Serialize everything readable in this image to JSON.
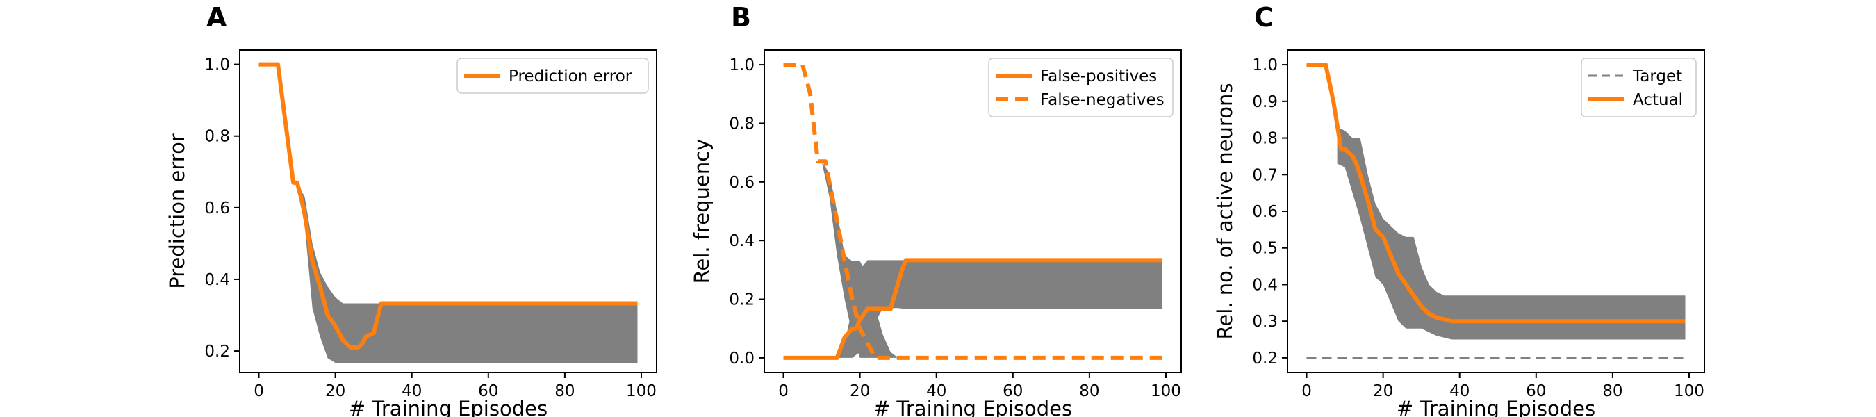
{
  "chart_data": [
    {
      "panel": "A",
      "type": "line",
      "xlabel": "# Training Episodes",
      "ylabel": "Prediction error",
      "xlim": [
        -5,
        104
      ],
      "ylim": [
        0.14,
        1.04
      ],
      "xticks": [
        0,
        20,
        40,
        60,
        80,
        100
      ],
      "yticks": [
        0.2,
        0.4,
        0.6,
        0.8,
        1.0
      ],
      "ytick_labels": [
        "0.2",
        "0.4",
        "0.6",
        "0.8",
        "1.0"
      ],
      "grid": false,
      "legend": "top-right",
      "band": {
        "color": "#808080",
        "x": [
          10,
          12,
          14,
          16,
          18,
          20,
          22,
          32,
          99
        ],
        "upper": [
          0.67,
          0.63,
          0.5,
          0.42,
          0.38,
          0.35,
          0.333,
          0.333,
          0.333
        ],
        "lower": [
          0.67,
          0.55,
          0.32,
          0.24,
          0.18,
          0.167,
          0.167,
          0.167,
          0.167
        ]
      },
      "series": [
        {
          "name": "Prediction error",
          "color": "#ff7f0e",
          "style": "solid",
          "x": [
            0,
            5,
            9,
            10,
            11,
            12,
            14,
            16,
            18,
            20,
            22,
            24,
            25,
            26,
            27,
            28,
            30,
            32,
            99
          ],
          "y": [
            1.0,
            1.0,
            0.67,
            0.67,
            0.63,
            0.58,
            0.45,
            0.38,
            0.3,
            0.27,
            0.23,
            0.21,
            0.21,
            0.21,
            0.22,
            0.24,
            0.25,
            0.333,
            0.333
          ]
        }
      ]
    },
    {
      "panel": "B",
      "type": "line",
      "xlabel": "# Training Episodes",
      "ylabel": "Rel. frequency",
      "xlim": [
        -5,
        104
      ],
      "ylim": [
        -0.05,
        1.05
      ],
      "xticks": [
        0,
        20,
        40,
        60,
        80,
        100
      ],
      "yticks": [
        0.0,
        0.2,
        0.4,
        0.6,
        0.8,
        1.0
      ],
      "ytick_labels": [
        "0.0",
        "0.2",
        "0.4",
        "0.6",
        "0.8",
        "1.0"
      ],
      "grid": false,
      "legend": "top-right",
      "bands": [
        {
          "color": "#808080",
          "x": [
            10,
            12,
            14,
            16,
            18,
            20,
            22,
            24,
            26,
            28,
            30,
            32
          ],
          "upper": [
            0.67,
            0.63,
            0.5,
            0.35,
            0.33,
            0.33,
            0.28,
            0.17,
            0.08,
            0.02,
            0.0,
            0.0
          ],
          "lower": [
            0.67,
            0.55,
            0.35,
            0.2,
            0.08,
            0.0,
            0.0,
            0.0,
            0.0,
            0.0,
            0.0,
            0.0
          ]
        },
        {
          "color": "#808080",
          "x": [
            14,
            16,
            18,
            20,
            22,
            24,
            26,
            28,
            30,
            32,
            99
          ],
          "upper": [
            0.0,
            0.05,
            0.17,
            0.3,
            0.333,
            0.333,
            0.333,
            0.333,
            0.333,
            0.333,
            0.333
          ],
          "lower": [
            0.0,
            0.0,
            0.0,
            0.02,
            0.08,
            0.12,
            0.17,
            0.17,
            0.17,
            0.167,
            0.167
          ]
        }
      ],
      "series": [
        {
          "name": "False-positives",
          "color": "#ff7f0e",
          "style": "solid",
          "x": [
            0,
            14,
            16,
            18,
            19,
            20,
            22,
            24,
            28,
            31,
            32,
            99
          ],
          "y": [
            0.0,
            0.0,
            0.07,
            0.1,
            0.1,
            0.13,
            0.167,
            0.167,
            0.167,
            0.3,
            0.333,
            0.333
          ]
        },
        {
          "name": "False-negatives",
          "color": "#ff7f0e",
          "style": "dashed",
          "x": [
            0,
            5,
            7,
            9,
            10,
            11,
            12,
            14,
            16,
            18,
            20,
            22,
            24,
            26,
            99
          ],
          "y": [
            1.0,
            1.0,
            0.9,
            0.67,
            0.67,
            0.67,
            0.6,
            0.47,
            0.33,
            0.2,
            0.1,
            0.05,
            0.0,
            0.0,
            0.0
          ]
        }
      ]
    },
    {
      "panel": "C",
      "type": "line",
      "xlabel": "# Training Episodes",
      "ylabel": "Rel. no. of active neurons",
      "xlim": [
        -5,
        104
      ],
      "ylim": [
        0.16,
        1.04
      ],
      "xticks": [
        0,
        20,
        40,
        60,
        80,
        100
      ],
      "yticks": [
        0.2,
        0.3,
        0.4,
        0.5,
        0.6,
        0.7,
        0.8,
        0.9,
        1.0
      ],
      "ytick_labels": [
        "0.2",
        "0.3",
        "0.4",
        "0.5",
        "0.6",
        "0.7",
        "0.8",
        "0.9",
        "1.0"
      ],
      "grid": false,
      "legend": "top-right",
      "band": {
        "color": "#808080",
        "x": [
          8,
          10,
          12,
          14,
          16,
          18,
          20,
          22,
          24,
          26,
          28,
          30,
          32,
          34,
          36,
          38,
          40,
          99
        ],
        "upper": [
          0.83,
          0.82,
          0.8,
          0.8,
          0.7,
          0.62,
          0.58,
          0.56,
          0.54,
          0.53,
          0.53,
          0.45,
          0.4,
          0.38,
          0.37,
          0.37,
          0.37,
          0.37
        ],
        "lower": [
          0.73,
          0.72,
          0.65,
          0.58,
          0.5,
          0.42,
          0.4,
          0.35,
          0.3,
          0.28,
          0.28,
          0.28,
          0.27,
          0.26,
          0.255,
          0.25,
          0.25,
          0.25
        ]
      },
      "series": [
        {
          "name": "Target",
          "color": "#808080",
          "style": "dashed",
          "x": [
            0,
            99
          ],
          "y": [
            0.2,
            0.2
          ]
        },
        {
          "name": "Actual",
          "color": "#ff7f0e",
          "style": "solid",
          "x": [
            0,
            5,
            7,
            9,
            10,
            11,
            12,
            13,
            14,
            16,
            18,
            20,
            22,
            24,
            26,
            28,
            30,
            32,
            34,
            36,
            38,
            40,
            99
          ],
          "y": [
            1.0,
            1.0,
            0.9,
            0.77,
            0.77,
            0.76,
            0.75,
            0.73,
            0.7,
            0.63,
            0.55,
            0.53,
            0.48,
            0.43,
            0.4,
            0.37,
            0.34,
            0.32,
            0.31,
            0.305,
            0.3,
            0.3,
            0.3
          ]
        }
      ]
    }
  ]
}
